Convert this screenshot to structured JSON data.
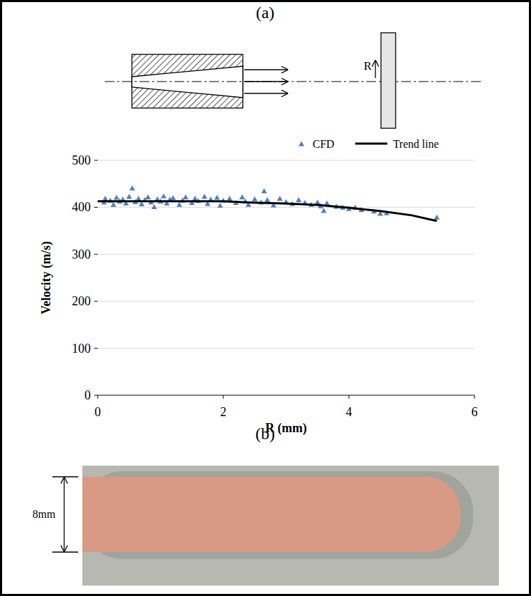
{
  "chart_data": {
    "type": "scatter",
    "x_label": "R (mm)",
    "y_label": "Velocity (m/s)",
    "xlim": [
      0,
      6
    ],
    "xticks": [
      0,
      2,
      4,
      6
    ],
    "ylim": [
      0,
      500
    ],
    "yticks": [
      0,
      100,
      200,
      300,
      400,
      500
    ],
    "grid": true,
    "legend": "top",
    "series": [
      {
        "name": "CFD",
        "type": "scatter",
        "marker": "triangle",
        "color": "#4f81bd",
        "x": [
          0.1,
          0.12,
          0.2,
          0.25,
          0.3,
          0.35,
          0.4,
          0.45,
          0.5,
          0.55,
          0.6,
          0.65,
          0.7,
          0.75,
          0.8,
          0.85,
          0.9,
          0.95,
          1.0,
          1.05,
          1.1,
          1.15,
          1.2,
          1.3,
          1.35,
          1.4,
          1.5,
          1.55,
          1.6,
          1.7,
          1.75,
          1.8,
          1.9,
          1.95,
          2.0,
          2.1,
          2.2,
          2.3,
          2.35,
          2.4,
          2.5,
          2.6,
          2.65,
          2.7,
          2.8,
          2.9,
          3.0,
          3.1,
          3.2,
          3.3,
          3.4,
          3.5,
          3.55,
          3.6,
          3.65,
          3.8,
          3.9,
          4.0,
          4.1,
          4.2,
          4.4,
          4.5,
          4.6,
          5.4
        ],
        "values": [
          410,
          418,
          414,
          405,
          420,
          412,
          416,
          408,
          422,
          440,
          411,
          418,
          406,
          415,
          421,
          410,
          400,
          417,
          412,
          423,
          408,
          416,
          419,
          405,
          414,
          421,
          409,
          418,
          413,
          422,
          407,
          416,
          420,
          403,
          414,
          418,
          409,
          421,
          412,
          405,
          417,
          410,
          434,
          415,
          404,
          418,
          411,
          407,
          415,
          409,
          405,
          410,
          402,
          392,
          408,
          401,
          399,
          396,
          399,
          394,
          391,
          386,
          387,
          378
        ]
      },
      {
        "name": "Trend line",
        "type": "line",
        "line_style": "solid",
        "color": "#000000",
        "x": [
          0,
          0.5,
          1,
          1.5,
          2,
          2.3,
          2.5,
          3,
          3.5,
          4,
          4.5,
          5,
          5.4
        ],
        "values": [
          413,
          413,
          413,
          413,
          413,
          411,
          410,
          408,
          405,
          399,
          392,
          383,
          371
        ]
      }
    ]
  },
  "figure": {
    "panel_a": "(a)",
    "panel_b": "(b)",
    "diagram_label": "R",
    "dimension_label": "8mm"
  }
}
